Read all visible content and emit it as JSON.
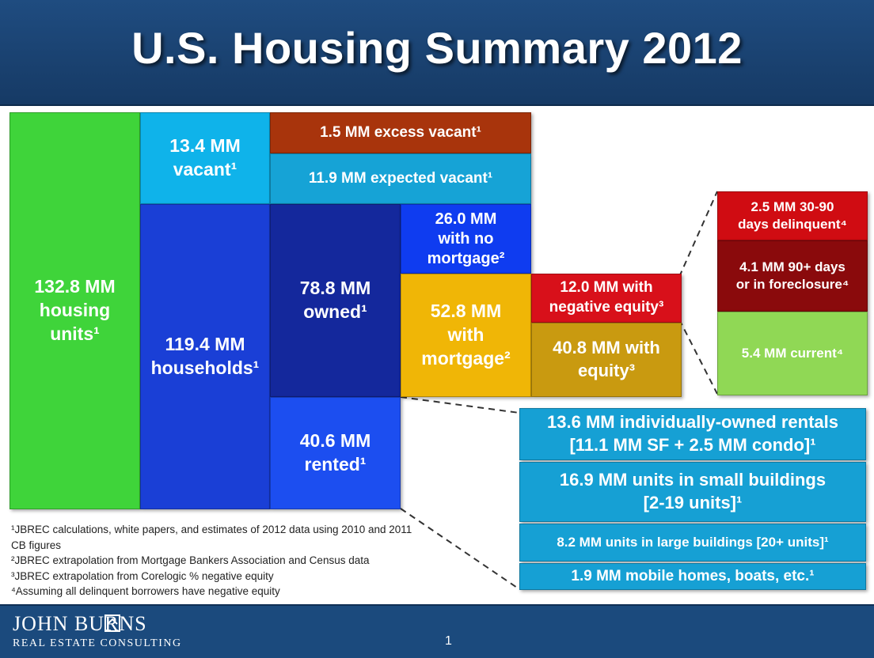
{
  "title": "U.S. Housing Summary 2012",
  "boxes": {
    "housing_units": [
      "132.8 MM",
      "housing",
      "units¹"
    ],
    "vacant": [
      "13.4 MM",
      "vacant¹"
    ],
    "excess_vacant": [
      "1.5 MM excess vacant¹"
    ],
    "expected_vacant": [
      "11.9 MM expected vacant¹"
    ],
    "households": [
      "119.4 MM",
      "households¹"
    ],
    "owned": [
      "78.8 MM",
      "owned¹"
    ],
    "rented": [
      "40.6 MM",
      "rented¹"
    ],
    "no_mortgage": [
      "26.0 MM",
      "with no",
      "mortgage²"
    ],
    "with_mortgage": [
      "52.8 MM",
      "with",
      "mortgage²"
    ],
    "negative_equity": [
      "12.0 MM with",
      "negative equity³"
    ],
    "with_equity": [
      "40.8 MM with",
      "equity³"
    ],
    "delinquent_30_90": [
      "2.5 MM 30-90",
      "days delinquent⁴"
    ],
    "delinquent_90_plus": [
      "4.1 MM 90+ days",
      "or in foreclosure⁴"
    ],
    "current": [
      "5.4 MM current⁴"
    ],
    "individually_owned_rentals": [
      "13.6 MM individually-owned rentals",
      "[11.1 MM SF + 2.5 MM condo]¹"
    ],
    "small_buildings": [
      "16.9 MM units in small buildings",
      "[2-19 units]¹"
    ],
    "large_buildings": [
      "8.2 MM units in large buildings  [20+ units]¹"
    ],
    "mobile_homes": [
      "1.9 MM mobile homes, boats, etc.¹"
    ]
  },
  "footnotes": [
    "¹JBREC calculations, white papers, and estimates of 2012 data using 2010 and 2011 CB figures",
    "²JBREC extrapolation from Mortgage Bankers Association and Census data",
    "³JBREC extrapolation from Corelogic % negative equity",
    "⁴Assuming all delinquent borrowers have negative equity"
  ],
  "footer": {
    "logo_line1": "JOHN BURNS",
    "logo_line2": "REAL ESTATE CONSULTING",
    "page_number": "1"
  },
  "colors": {
    "header": "#1f4c80",
    "housing_units": "#3fd43a",
    "vacant": "#0fb3ea",
    "excess_vacant": "#a8340c",
    "expected_vacant": "#16a3d6",
    "households": "#1a3fd6",
    "owned": "#14289c",
    "rented": "#1c4ef0",
    "no_mortgage": "#0f3cf0",
    "with_mortgage": "#f0b606",
    "negative_equity": "#d8101a",
    "with_equity": "#c99a10",
    "delinquent_30_90": "#d00c12",
    "delinquent_90_plus": "#8a0a0c",
    "current": "#90d855",
    "rentals": "#16a0d4"
  }
}
